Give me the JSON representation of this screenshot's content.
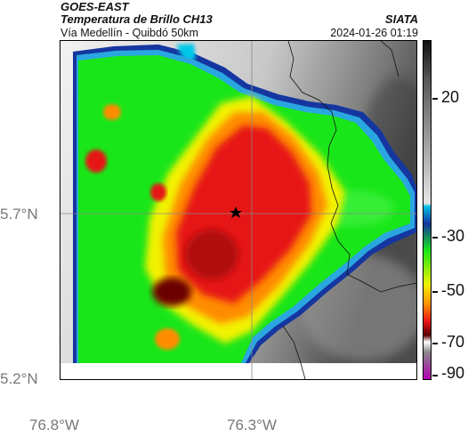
{
  "header": {
    "title": "GOES-EAST",
    "subtitle": "Temperatura de Brillo CH13",
    "brand": "SIATA",
    "route": "Vía Medellín - Quibdó 50km",
    "datetime": "2024-01-26 01:19"
  },
  "map": {
    "lat_labels": [
      "5.7°N",
      "5.2°N"
    ],
    "lon_labels": [
      "76.8°W",
      "76.3°W"
    ],
    "marker": "star"
  },
  "colorbar": {
    "tick_values": [
      "20",
      "-30",
      "-50",
      "-70",
      "-90"
    ],
    "colors": {
      "warm_gray_light": "#e6e6e6",
      "warm_gray_dark": "#5a5a5a",
      "cyan": "#00bfe6",
      "blue": "#1536a0",
      "green": "#19e619",
      "yellow": "#f2f200",
      "orange": "#ff8c00",
      "red": "#e61414",
      "dark_red": "#5a0000",
      "magenta": "#b400b4"
    }
  }
}
